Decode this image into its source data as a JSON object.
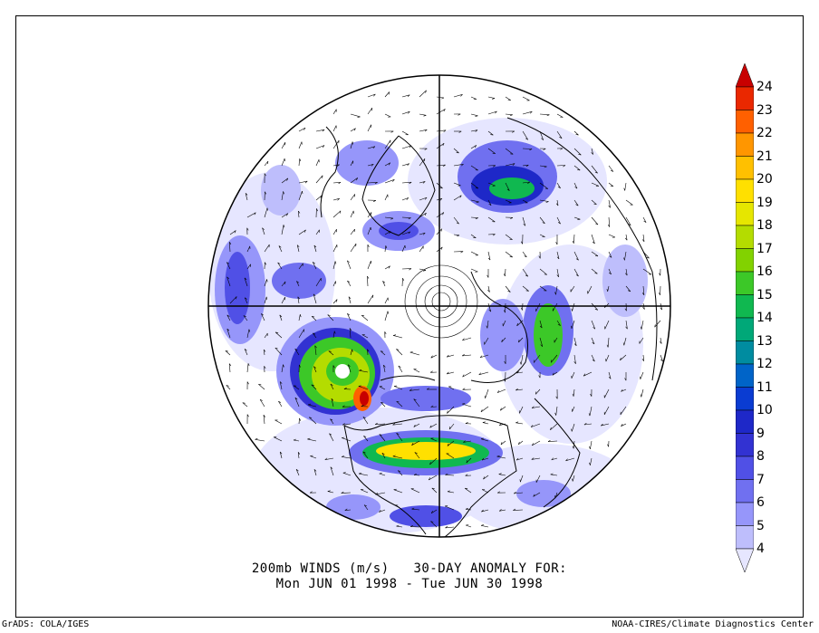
{
  "title": {
    "line1": "200mb WINDS (m/s)   30-DAY ANOMALY FOR:",
    "line2": "Mon JUN 01 1998 - Tue JUN 30 1998"
  },
  "footer": {
    "left": "GrADS: COLA/IGES",
    "right": "NOAA-CIRES/Climate Diagnostics Center"
  },
  "colorbar": {
    "labels": [
      "24",
      "23",
      "22",
      "21",
      "20",
      "19",
      "18",
      "17",
      "16",
      "15",
      "14",
      "13",
      "12",
      "11",
      "10",
      "9",
      "8",
      "7",
      "6",
      "5",
      "4"
    ],
    "colors": [
      "#c80000",
      "#ea2800",
      "#ff6000",
      "#ff9600",
      "#ffc000",
      "#ffe000",
      "#e6e600",
      "#b4dc00",
      "#82d200",
      "#3cc828",
      "#10b850",
      "#00a878",
      "#008ca0",
      "#0064c8",
      "#0a3cd2",
      "#1e28c8",
      "#3232d2",
      "#5050e6",
      "#7070f0",
      "#9696fa",
      "#bebefc",
      "#e6e6ff"
    ]
  },
  "map": {
    "projection": "north-polar-stereographic",
    "features": [
      "polar-grid",
      "coastlines",
      "wind-vectors",
      "shaded-anomaly"
    ]
  }
}
